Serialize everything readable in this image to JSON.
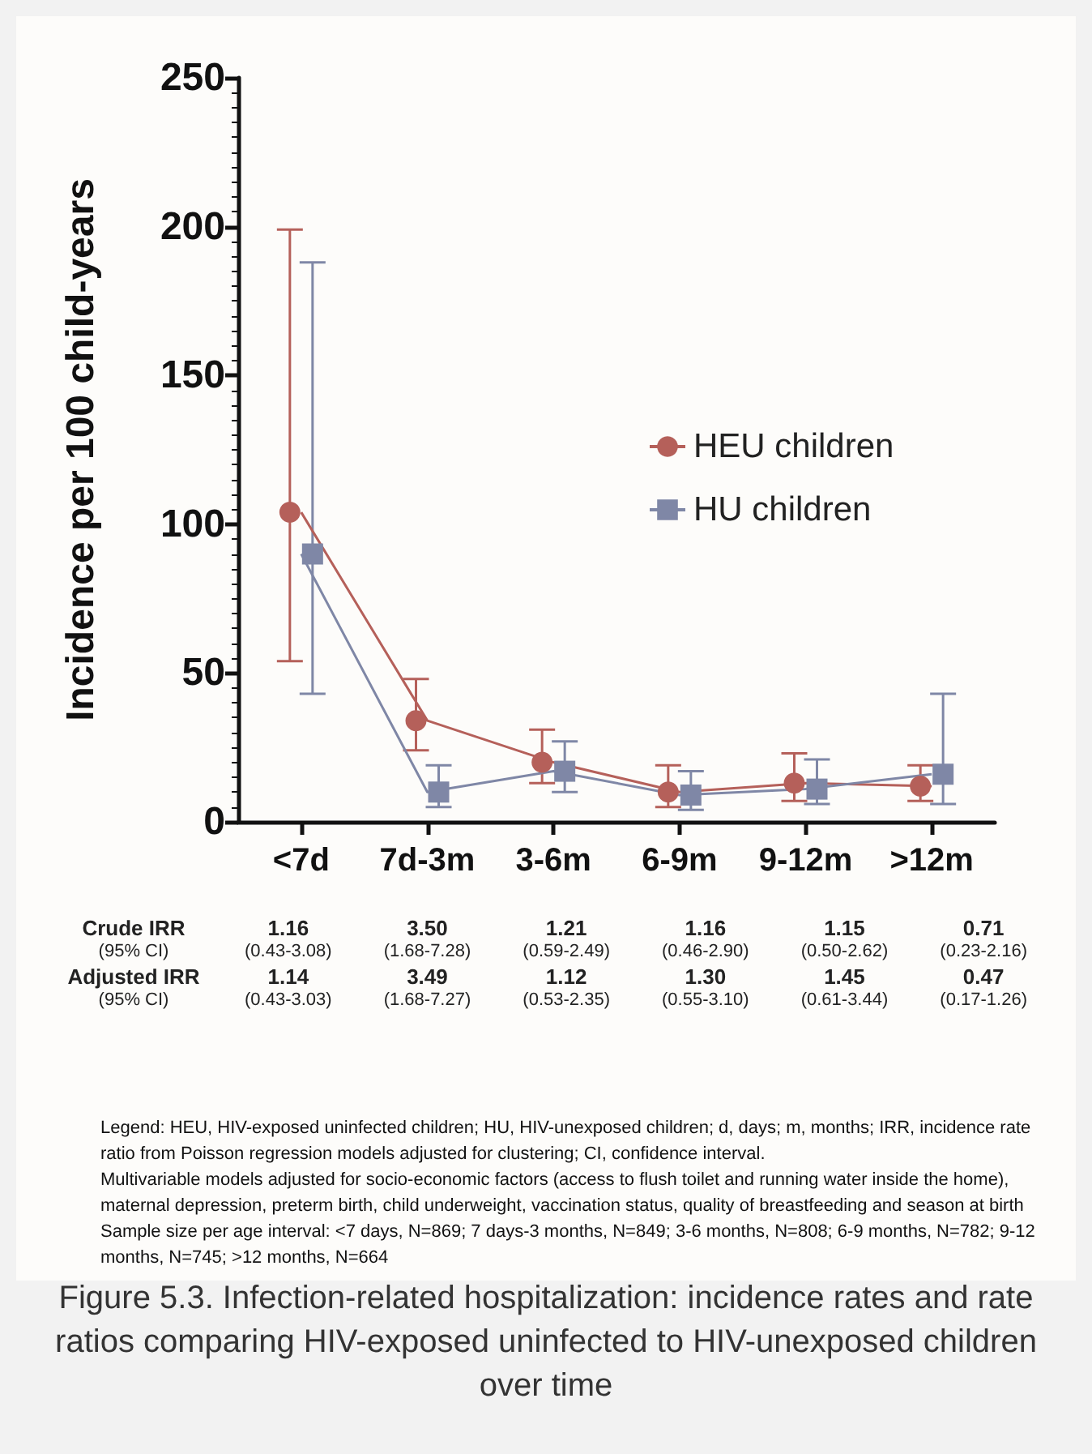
{
  "chart_data": {
    "type": "line",
    "title": "Figure 5.3. Infection-related hospitalization: incidence rates and rate ratios comparing HIV-exposed uninfected to HIV-unexposed children over time",
    "ylabel": "Incidence per 100 child-years",
    "categories": [
      "<7d",
      "7d-3m",
      "3-6m",
      "6-9m",
      "9-12m",
      ">12m"
    ],
    "series": [
      {
        "name": "HEU children",
        "color": "#b5605a",
        "marker": "circle",
        "values": [
          104,
          34,
          20,
          10,
          13,
          12
        ],
        "errors": [
          [
            54,
            199
          ],
          [
            24,
            48
          ],
          [
            13,
            31
          ],
          [
            5,
            19
          ],
          [
            7,
            23
          ],
          [
            7,
            19
          ]
        ]
      },
      {
        "name": "HU children",
        "color": "#7f87a6",
        "marker": "square",
        "values": [
          90,
          10,
          17,
          9,
          11,
          16
        ],
        "errors": [
          [
            43,
            188
          ],
          [
            5,
            19
          ],
          [
            10,
            27
          ],
          [
            4,
            17
          ],
          [
            6,
            21
          ],
          [
            6,
            43
          ]
        ]
      }
    ],
    "ylim": [
      0,
      250
    ],
    "yticks": [
      0,
      50,
      100,
      150,
      200,
      250
    ],
    "grid": false,
    "legend": "right",
    "annotations": [
      "Crude IRR",
      "1.16",
      "3.50",
      "1.21",
      "1.16",
      "1.15",
      "0.71",
      "(95% CI)",
      "(0.43-3.08)",
      "(1.68-7.28)",
      "(0.59-2.49)",
      "(0.46-2.90)",
      "(0.50-2.62)",
      "(0.23-2.16)",
      "Adjusted IRR",
      "1.14",
      "3.49",
      "1.12",
      "1.30",
      "1.45",
      "0.47",
      "(95% CI)",
      "(0.43-3.03)",
      "(1.68-7.27)",
      "(0.53-2.35)",
      "(0.55-3.10)",
      "(0.61-3.44)",
      "(0.17-1.26)",
      "Legend: HEU, HIV-exposed uninfected children; HU, HIV-unexposed children; d, days; m, months; IRR, incidence rate ratio from Poisson regression models adjusted for clustering; CI, confidence interval.",
      "Multivariable models adjusted for socio-economic factors (access to flush toilet and running water inside the home), maternal depression, preterm birth, child underweight, vaccination status, quality of breastfeeding and season at birth",
      "Sample size per age interval:  <7 days, N=869; 7 days-3 months, N=849; 3-6 months, N=808; 6-9 months, N=782; 9-12 months, N=745; >12 months, N=664"
    ]
  }
}
